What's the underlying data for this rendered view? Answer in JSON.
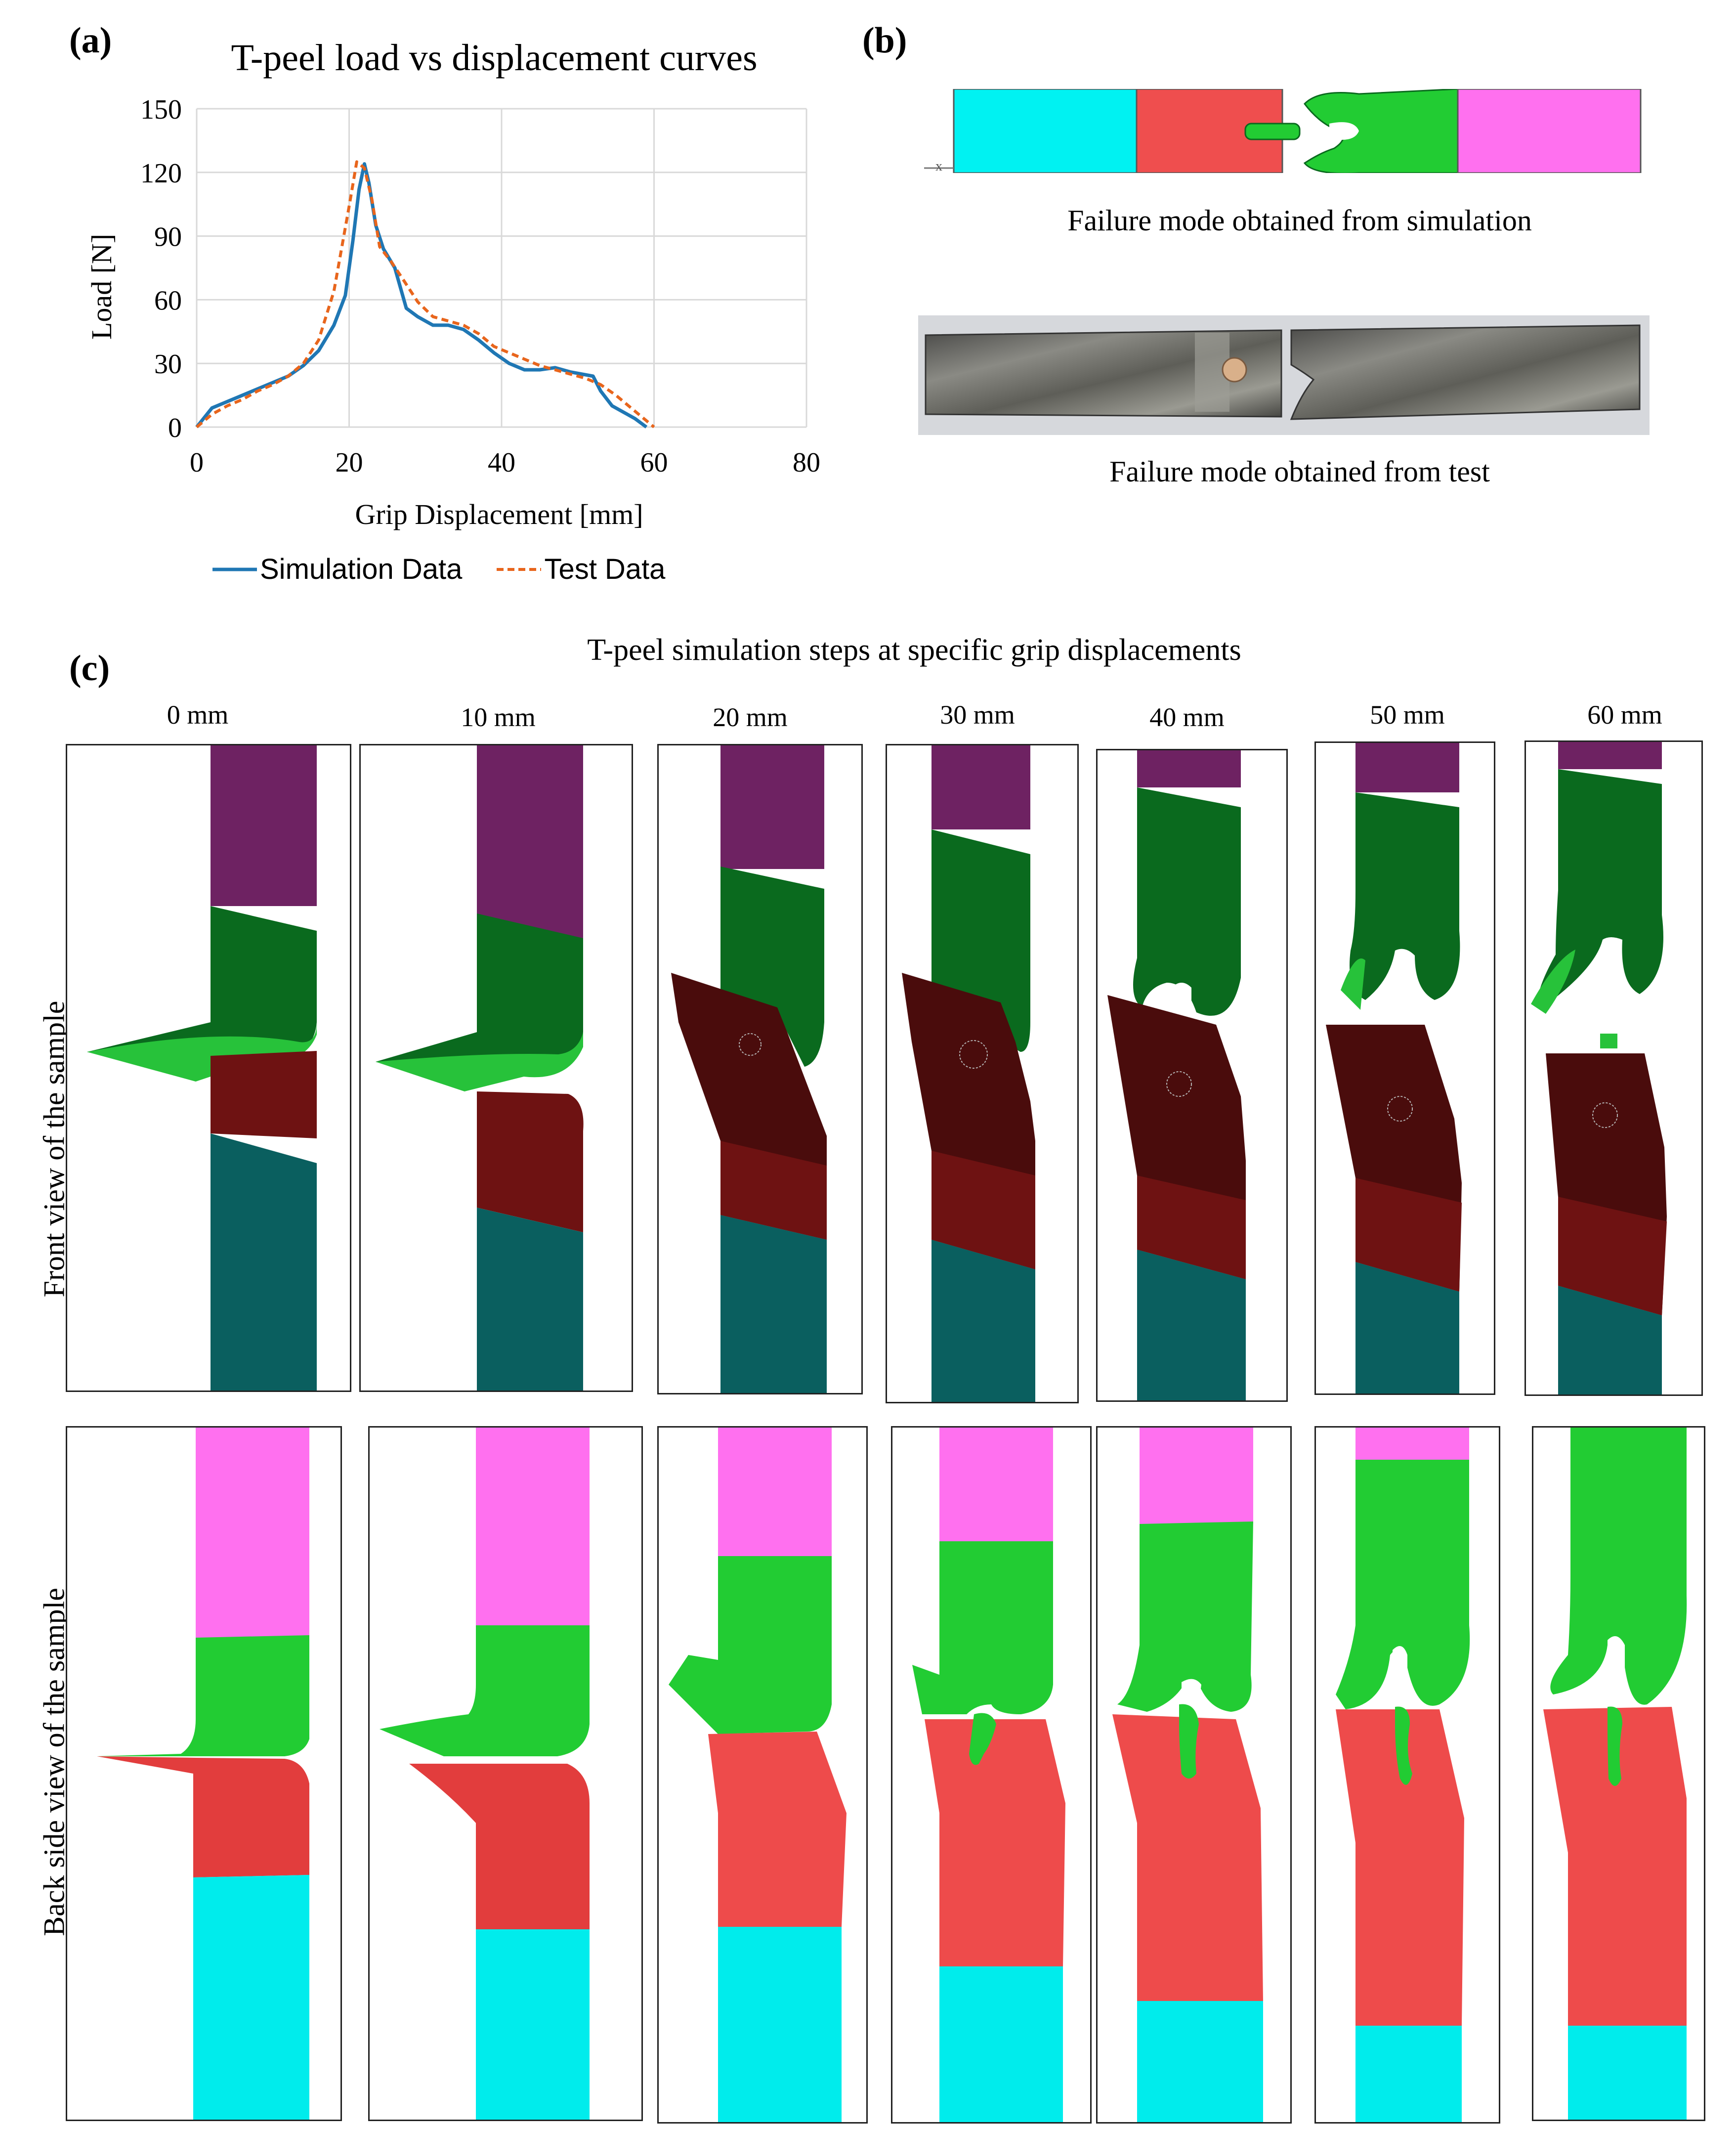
{
  "panel_a": {
    "letter": "(a)",
    "legend": {
      "sim": "Simulation Data",
      "test": "Test Data"
    }
  },
  "panel_b": {
    "letter": "(b)",
    "caption_sim": "Failure mode obtained from simulation",
    "caption_test": "Failure mode obtained from test"
  },
  "panel_c": {
    "letter": "(c)",
    "title": "T-peel simulation steps at specific grip displacements",
    "columns": [
      "0 mm",
      "10 mm",
      "20 mm",
      "30 mm",
      "40 mm",
      "50 mm",
      "60 mm"
    ],
    "row_front": "Front view of the sample",
    "row_back": "Back side view of the sample"
  },
  "colors": {
    "sim_line": "#1f77b4",
    "test_line": "#e8651c",
    "cyan": "#00e8e8",
    "red": "#ee4b4b",
    "green": "#22cc33",
    "magenta": "#ff70ef",
    "purple": "#6e2262",
    "dark_green": "#0a6a1e",
    "dark_red": "#6e1212",
    "teal": "#0a5f5f"
  },
  "chart_data": {
    "type": "line",
    "title": "T-peel load vs displacement curves",
    "xlabel": "Grip Displacement [mm]",
    "ylabel": "Load [N]",
    "xlim": [
      0,
      80
    ],
    "ylim": [
      0,
      150
    ],
    "xticks": [
      0,
      20,
      40,
      60,
      80
    ],
    "yticks": [
      0,
      30,
      60,
      90,
      120,
      150
    ],
    "grid": true,
    "legend_position": "bottom",
    "series": [
      {
        "name": "Simulation Data",
        "style": "solid",
        "x": [
          0,
          2,
          4,
          6,
          8,
          10,
          12,
          14,
          16,
          18,
          19.5,
          20.5,
          21.3,
          22,
          22.6,
          23.5,
          24.5,
          26,
          27.5,
          29,
          31,
          33,
          35,
          37,
          39,
          41,
          43,
          45,
          47,
          49,
          50.5,
          52,
          53,
          54.5,
          56,
          57.5,
          59
        ],
        "y": [
          0,
          9,
          12,
          15,
          18,
          21,
          24,
          29,
          36,
          48,
          62,
          88,
          112,
          124,
          115,
          95,
          84,
          75,
          56,
          52,
          48,
          48,
          46,
          41,
          35,
          30,
          27,
          27,
          28,
          26,
          25,
          24,
          17,
          10,
          7,
          4,
          0
        ]
      },
      {
        "name": "Test Data",
        "style": "dashed",
        "x": [
          0,
          2,
          4,
          6,
          8,
          10,
          12,
          14,
          16,
          18,
          20,
          21,
          22,
          23,
          24,
          25.5,
          27,
          29,
          31,
          33,
          35,
          37,
          39,
          41,
          43,
          45,
          47,
          49,
          51,
          53,
          55,
          57,
          59,
          60
        ],
        "y": [
          0,
          6,
          10,
          13,
          17,
          20,
          24,
          30,
          41,
          64,
          104,
          125,
          122,
          107,
          85,
          78,
          70,
          59,
          52,
          50,
          48,
          44,
          38,
          35,
          32,
          29,
          27,
          25,
          23,
          20,
          15,
          9,
          3,
          0
        ]
      }
    ]
  }
}
